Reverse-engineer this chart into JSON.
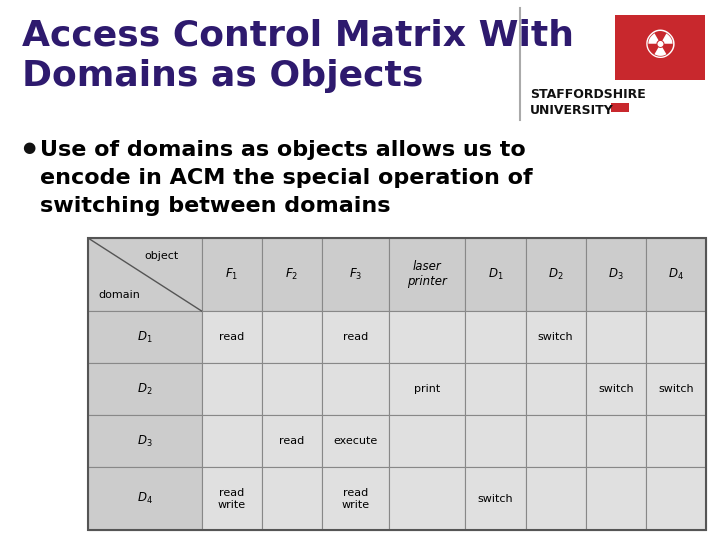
{
  "title_line1": "Access Control Matrix With",
  "title_line2": "Domains as Objects",
  "title_color": "#2E1A6E",
  "bullet_text_line1": "Use of domains as objects allows us to",
  "bullet_text_line2": "encode in ACM the special operation of",
  "bullet_text_line3": "switching between domains",
  "bullet_color": "#000000",
  "bg_color": "#FFFFFF",
  "header_bg": "#CCCCCC",
  "cell_bg": "#E0E0E0",
  "col_headers_italic": [
    "F₁",
    "F₂",
    "F₃",
    "laser\nprinter",
    "D₁",
    "D₂",
    "D₃",
    "D₄"
  ],
  "row_headers_italic": [
    "D₁",
    "D₂",
    "D₃",
    "D₄"
  ],
  "cell_data": [
    [
      "read",
      "",
      "read",
      "",
      "",
      "switch",
      "",
      ""
    ],
    [
      "",
      "",
      "",
      "print",
      "",
      "",
      "switch",
      "switch"
    ],
    [
      "",
      "read",
      "execute",
      "",
      "",
      "",
      "",
      ""
    ],
    [
      "read\nwrite",
      "",
      "read\nwrite",
      "",
      "switch",
      "",
      "",
      ""
    ]
  ],
  "staffordshire_red": "#C8282D",
  "staffordshire_dark": "#2E1A6E",
  "col_widths_rel": [
    1.7,
    0.9,
    0.9,
    1.0,
    1.15,
    0.9,
    0.9,
    0.9,
    0.9
  ],
  "row_heights_rel": [
    1.4,
    1.0,
    1.0,
    1.0,
    1.2
  ]
}
